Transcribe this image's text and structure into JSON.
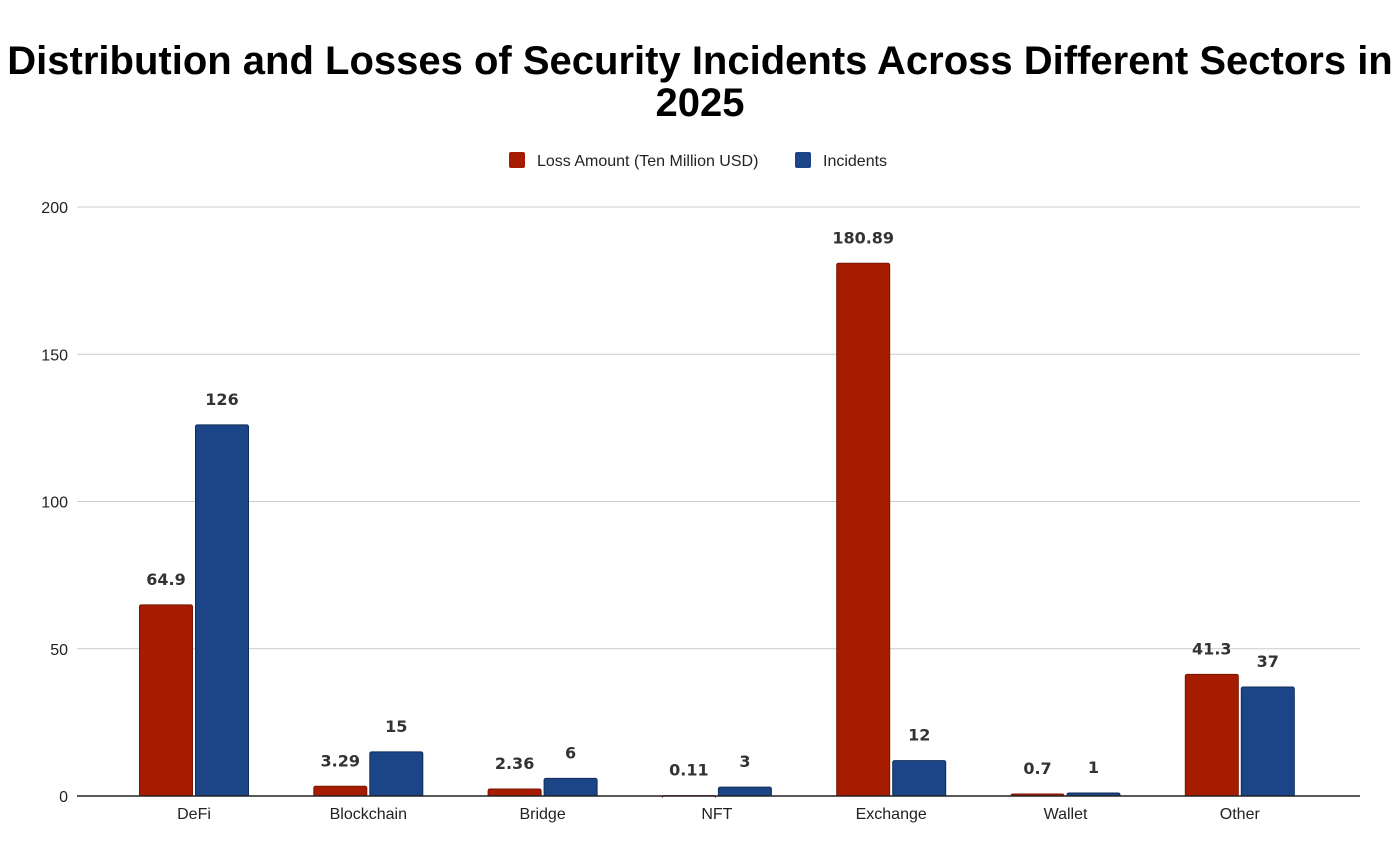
{
  "chart_data": {
    "type": "bar",
    "title": "Distribution and Losses of Security Incidents Across Different Sectors in 2025",
    "categories": [
      "DeFi",
      "Blockchain",
      "Bridge",
      "NFT",
      "Exchange",
      "Wallet",
      "Other"
    ],
    "series": [
      {
        "name": "Loss Amount (Ten Million USD)",
        "color": "#a61c00",
        "values": [
          64.9,
          3.29,
          2.36,
          0.11,
          180.89,
          0.7,
          41.3
        ],
        "labels": [
          "64.9",
          "3.29",
          "2.36",
          "0.11",
          "180.89",
          "0.7",
          "41.3"
        ]
      },
      {
        "name": "Incidents",
        "color": "#1c4587",
        "values": [
          126,
          15,
          6,
          3,
          12,
          1,
          37
        ],
        "labels": [
          "126",
          "15",
          "6",
          "3",
          "12",
          "1",
          "37"
        ]
      }
    ],
    "xlabel": "",
    "ylabel": "",
    "ylim": [
      0,
      200
    ],
    "yticks": [
      0,
      50,
      100,
      150,
      200
    ],
    "grid": true,
    "legend": "top-center"
  }
}
